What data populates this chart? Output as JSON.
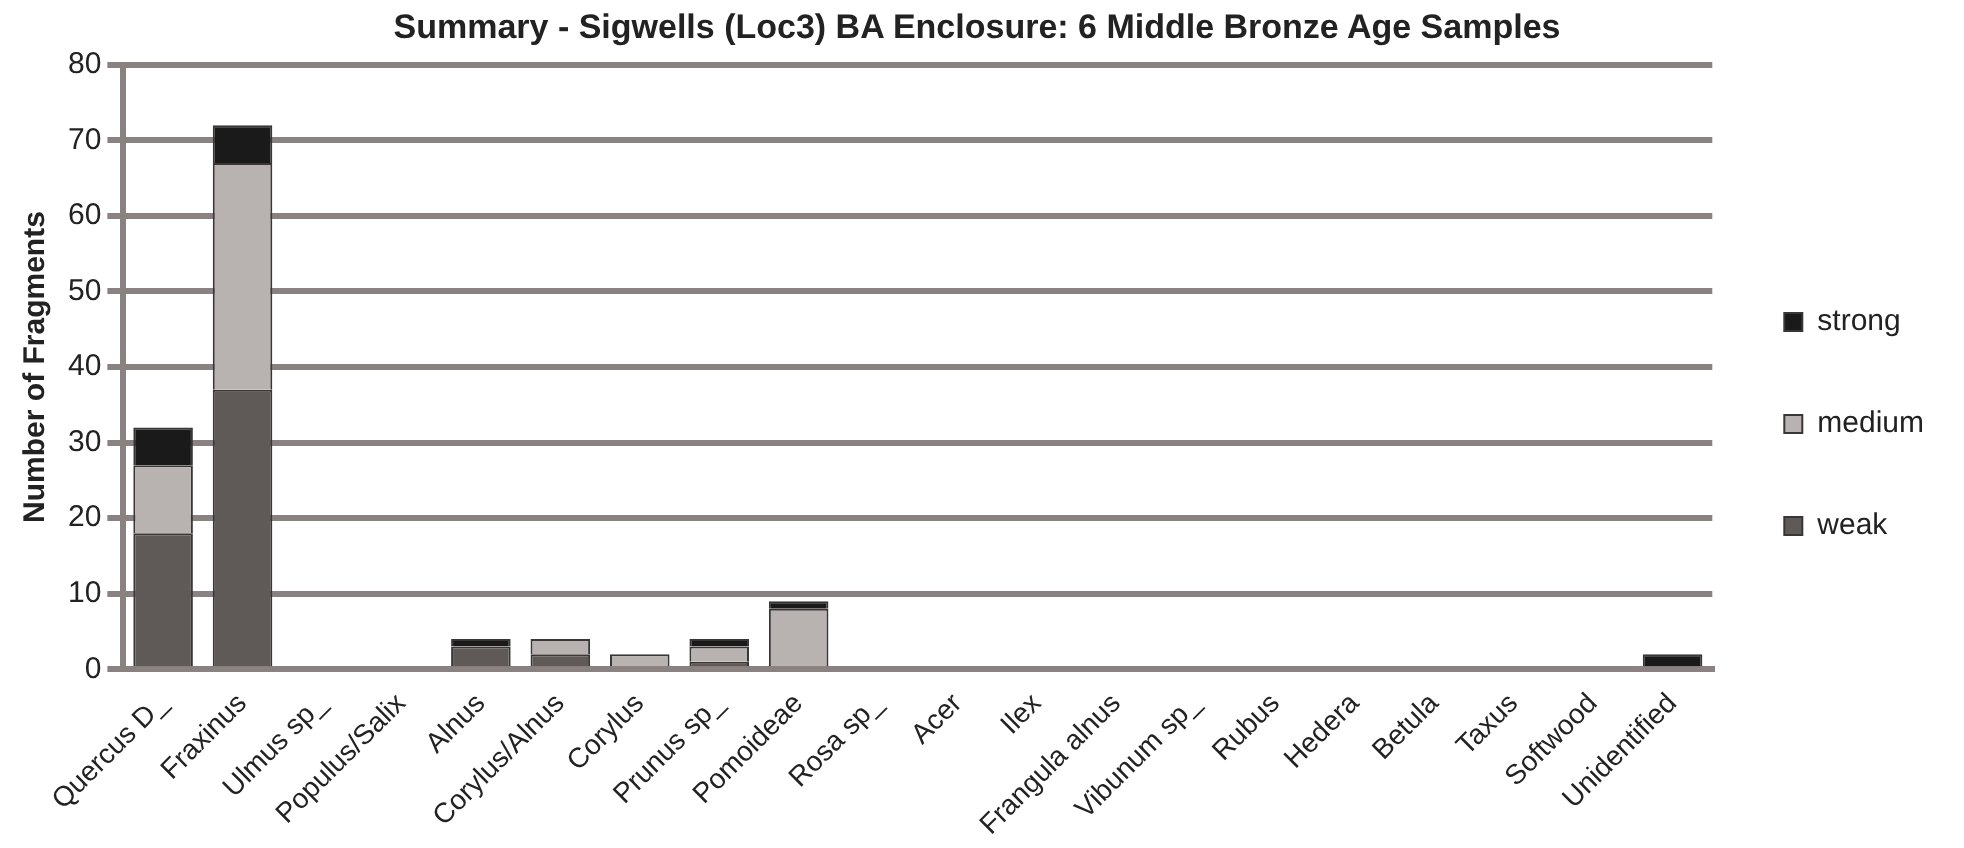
{
  "chart_data": {
    "type": "bar",
    "title": "Summary - Sigwells (Loc3) BA Enclosure: 6 Middle Bronze Age Samples",
    "ylabel": "Number of Fragments",
    "categories": [
      "Quercus D_",
      "Fraxinus",
      "Ulmus sp_",
      "Populus/Salix",
      "Alnus",
      "Corylus/Alnus",
      "Corylus",
      "Prunus sp_",
      "Pomoideae",
      "Rosa sp_",
      "Acer",
      "Ilex",
      "Frangula alnus",
      "Vibunum sp_",
      "Rubus",
      "Hedera",
      "Betula",
      "Taxus",
      "Softwood",
      "Unidentified"
    ],
    "stacked": true,
    "series": [
      {
        "name": "weak",
        "color": "#5f5a58",
        "values": [
          18,
          37,
          0,
          0,
          3,
          2,
          0,
          1,
          0,
          0,
          0,
          0,
          0,
          0,
          0,
          0,
          0,
          0,
          0,
          0
        ]
      },
      {
        "name": "medium",
        "color": "#b8b2b0",
        "values": [
          9,
          30,
          0,
          0,
          0,
          2,
          2,
          2,
          8,
          0,
          0,
          0,
          0,
          0,
          0,
          0,
          0,
          0,
          0,
          0
        ]
      },
      {
        "name": "strong",
        "color": "#1a1a1a",
        "values": [
          5,
          5,
          0,
          0,
          1,
          0,
          0,
          1,
          1,
          0,
          0,
          0,
          0,
          0,
          0,
          0,
          0,
          0,
          0,
          2
        ]
      }
    ],
    "ylim": [
      0,
      80
    ],
    "yticks": [
      0,
      10,
      20,
      30,
      40,
      50,
      60,
      70,
      80
    ],
    "grid": "y",
    "legend": "right"
  }
}
